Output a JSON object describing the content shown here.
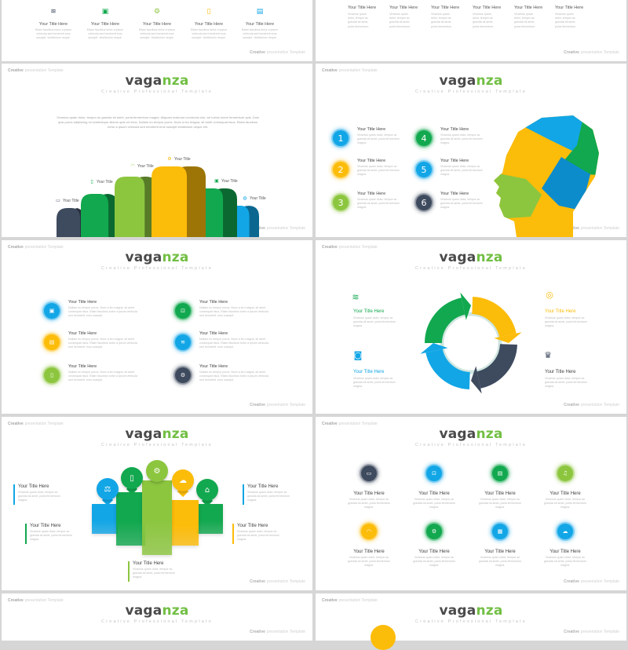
{
  "common": {
    "header_bold": "Creative",
    "header_light": "presentation Template",
    "brand_dark": "vaga",
    "brand_accent": "nza",
    "subtitle": "Creative Professional Template"
  },
  "colors": {
    "navy": "#3e4a5e",
    "green": "#12a84f",
    "light_green": "#8cc63f",
    "yellow": "#fcbc0a",
    "blue": "#12a6e6",
    "brand_accent": "#72bf44"
  },
  "slide_top_left": {
    "items": [
      {
        "icon": "rss-icon",
        "color": "#3e4a5e",
        "title": "Your Title Here",
        "body": "Etiam faucibus tortor a ipsum vehicula sed hendrerit eros suscipit. Vestibulum neque."
      },
      {
        "icon": "desktop-icon",
        "color": "#12a84f",
        "title": "Your Title Here",
        "body": "Etiam faucibus tortor a ipsum vehicula sed hendrerit eros suscipit. Vestibulum neque."
      },
      {
        "icon": "gear-icon",
        "color": "#8cc63f",
        "title": "Your Title Here",
        "body": "Etiam faucibus tortor a ipsum vehicula sed hendrerit eros suscipit. Vestibulum neque."
      },
      {
        "icon": "phone-icon",
        "color": "#fcbc0a",
        "title": "Your Title Here",
        "body": "Etiam faucibus tortor a ipsum vehicula sed hendrerit eros suscipit. Vestibulum neque."
      },
      {
        "icon": "clipboard-icon",
        "color": "#12a6e6",
        "title": "Your Title Here",
        "body": "Etiam faucibus tortor a ipsum vehicula sed hendrerit eros suscipit. Vestibulum neque."
      }
    ]
  },
  "slide_top_right": {
    "items": [
      {
        "title": "Your Title Here",
        "body": "Vivamus quam dolor, tempor ac gravida sit amet, porta fermentum"
      },
      {
        "title": "Your Title Here",
        "body": "Vivamus quam dolor, tempor ac gravida sit amet, porta fermentum"
      },
      {
        "title": "Your Title Here",
        "body": "Vivamus quam dolor, tempor ac gravida sit amet, porta fermentum"
      },
      {
        "title": "Your Title Here",
        "body": "Vivamus quam dolor, tempor ac gravida sit amet, porta fermentum"
      },
      {
        "title": "Your Title Here",
        "body": "Vivamus quam dolor, tempor ac gravida sit amet, porta fermentum"
      },
      {
        "title": "Your Title Here",
        "body": "Vivamus quam dolor, tempor ac gravida sit amet, porta fermentum"
      }
    ]
  },
  "slide_arches": {
    "paragraph": "Vivamus quam dolor, tempor ac gravida sit amet, porta fermentum magna. Aliquam euismod commodo nisi, vel luctus lorem fermentum quis. Duis quis purus adipiscing mi scelerisque dictum quis vel eros. Nullam eu tempor purus. Nunc a leo magna, sit amet consequat risus. Etiam faucibus tortor a ipsum vehicula sed hendrerit eros suscipit vestibulum neque elit.",
    "bars": [
      {
        "label": "Your Title",
        "icon": "monitor-icon",
        "color": "#3e4a5e"
      },
      {
        "label": "Your Title",
        "icon": "phone-icon",
        "color": "#12a84f"
      },
      {
        "label": "Your Title",
        "icon": "wifi-icon",
        "color": "#8cc63f"
      },
      {
        "label": "Your Title",
        "icon": "gear-icon",
        "color": "#fcbc0a"
      },
      {
        "label": "Your Title",
        "icon": "desktop-icon",
        "color": "#12a84f"
      },
      {
        "label": "Your Title",
        "icon": "globe-icon",
        "color": "#12a6e6"
      }
    ]
  },
  "slide_puzzle": {
    "items": [
      {
        "number": "1",
        "color": "#12a6e6",
        "title": "Your Title Here",
        "body": "Vivamus quam dolor, tempor ac gravida sit amet, porta fermentum magna."
      },
      {
        "number": "2",
        "color": "#fcbc0a",
        "title": "Your Title Here",
        "body": "Vivamus quam dolor, tempor ac gravida sit amet, porta fermentum magna."
      },
      {
        "number": "3",
        "color": "#8cc63f",
        "title": "Your Title Here",
        "body": "Vivamus quam dolor, tempor ac gravida sit amet, porta fermentum magna."
      },
      {
        "number": "4",
        "color": "#12a84f",
        "title": "Your Title Here",
        "body": "Vivamus quam dolor, tempor ac gravida sit amet, porta fermentum magna."
      },
      {
        "number": "5",
        "color": "#12a6e6",
        "title": "Your Title Here",
        "body": "Vivamus quam dolor, tempor ac gravida sit amet, porta fermentum magna."
      },
      {
        "number": "6",
        "color": "#3e4a5e",
        "title": "Your Title Here",
        "body": "Vivamus quam dolor, tempor ac gravida sit amet, porta fermentum magna."
      }
    ]
  },
  "slide_icon_list": {
    "items": [
      {
        "icon": "desktop-icon",
        "color": "#12a6e6",
        "title": "Your Title Here",
        "body": "Nullam eu tempor purus. Nunc a leo magna, sit amet consequat risus. Etiam faucibus tortor a ipsum vehicula sed hendrerit. eros suscipit."
      },
      {
        "icon": "clipboard-icon",
        "color": "#fcbc0a",
        "title": "Your Title Here",
        "body": "Nullam eu tempor purus. Nunc a leo magna, sit amet consequat risus. Etiam faucibus tortor a ipsum vehicula sed hendrerit. eros suscipit."
      },
      {
        "icon": "phone-icon",
        "color": "#8cc63f",
        "title": "Your Title Here",
        "body": "Nullam eu tempor purus. Nunc a leo magna, sit amet consequat risus. Etiam faucibus tortor a ipsum vehicula sed hendrerit. eros suscipit."
      },
      {
        "icon": "lock-icon",
        "color": "#12a84f",
        "title": "Your Title Here",
        "body": "Nullam eu tempor purus. Nunc a leo magna, sit amet consequat risus. Etiam faucibus tortor a ipsum vehicula sed hendrerit. eros suscipit."
      },
      {
        "icon": "rss-icon",
        "color": "#12a6e6",
        "title": "Your Title Here",
        "body": "Nullam eu tempor purus. Nunc a leo magna, sit amet consequat risus. Etiam faucibus tortor a ipsum vehicula sed hendrerit. eros suscipit."
      },
      {
        "icon": "gear-icon",
        "color": "#3e4a5e",
        "title": "Your Title Here",
        "body": "Nullam eu tempor purus. Nunc a leo magna, sit amet consequat risus. Etiam faucibus tortor a ipsum vehicula sed hendrerit. eros suscipit."
      }
    ]
  },
  "slide_cycle": {
    "items": [
      {
        "icon": "rss-icon",
        "color": "#12a84f",
        "title": "Your Title Here",
        "body": "Vivamus quam dolor, tempor ac gravida sit amet, porta fermentum magna."
      },
      {
        "icon": "camera-icon",
        "color": "#12a6e6",
        "title": "Your Title Here",
        "body": "Vivamus quam dolor, tempor ac gravida sit amet, porta fermentum magna."
      },
      {
        "icon": "target-icon",
        "color": "#fcbc0a",
        "title": "Your Title Here",
        "body": "Vivamus quam dolor, tempor ac gravida sit amet, porta fermentum magna."
      },
      {
        "icon": "trophy-icon",
        "color": "#3e4a5e",
        "title": "Your Title Here",
        "body": "Vivamus quam dolor, tempor ac gravida sit amet, porta fermentum magna."
      }
    ],
    "segments": [
      "#12a84f",
      "#fcbc0a",
      "#3e4a5e",
      "#12a6e6"
    ]
  },
  "slide_pins": {
    "pins": [
      {
        "icon": "scale-icon",
        "color": "#12a6e6"
      },
      {
        "icon": "phone-icon",
        "color": "#12a84f"
      },
      {
        "icon": "gear-icon",
        "color": "#8cc63f"
      },
      {
        "icon": "cloud-download-icon",
        "color": "#fcbc0a"
      },
      {
        "icon": "home-icon",
        "color": "#12a84f"
      }
    ],
    "texts": [
      {
        "color": "#12a6e6",
        "title": "Your Title Here",
        "body": "Vivamus quam dolor, tempor ac gravida sit amet, porta fermentum magna."
      },
      {
        "color": "#12a84f",
        "title": "Your Title Here",
        "body": "Vivamus quam dolor, tempor ac gravida sit amet, porta fermentum magna."
      },
      {
        "color": "#8cc63f",
        "title": "Your Title Here",
        "body": "Vivamus quam dolor, tempor ac gravida sit amet, porta fermentum magna."
      },
      {
        "color": "#12a6e6",
        "title": "Your Title Here",
        "body": "Vivamus quam dolor, tempor ac gravida sit amet, porta fermentum magna."
      },
      {
        "color": "#fcbc0a",
        "title": "Your Title Here",
        "body": "Vivamus quam dolor, tempor ac gravida sit amet, porta fermentum magna."
      }
    ]
  },
  "slide_grid": {
    "items": [
      {
        "icon": "monitor-icon",
        "color": "#3e4a5e",
        "title": "Your Title Here",
        "body": "Vivamus quam dolor, tempor ac gravida sit amet, porta fermentum magna."
      },
      {
        "icon": "lock-icon",
        "color": "#12a6e6",
        "title": "Your Title Here",
        "body": "Vivamus quam dolor, tempor ac gravida sit amet, porta fermentum magna."
      },
      {
        "icon": "clipboard-icon",
        "color": "#12a84f",
        "title": "Your Title Here",
        "body": "Vivamus quam dolor, tempor ac gravida sit amet, porta fermentum magna."
      },
      {
        "icon": "music-icon",
        "color": "#8cc63f",
        "title": "Your Title Here",
        "body": "Vivamus quam dolor, tempor ac gravida sit amet, porta fermentum magna."
      },
      {
        "icon": "wifi-icon",
        "color": "#fcbc0a",
        "title": "Your Title Here",
        "body": "Vivamus quam dolor, tempor ac gravida sit amet, porta fermentum magna."
      },
      {
        "icon": "gear-icon",
        "color": "#12a84f",
        "title": "Your Title Here",
        "body": "Vivamus quam dolor, tempor ac gravida sit amet, porta fermentum magna."
      },
      {
        "icon": "calendar-icon",
        "color": "#12a6e6",
        "title": "Your Title Here",
        "body": "Vivamus quam dolor, tempor ac gravida sit amet, porta fermentum magna."
      },
      {
        "icon": "cloud-download-icon",
        "color": "#12a6e6",
        "title": "Your Title Here",
        "body": "Vivamus quam dolor, tempor ac gravida sit amet, porta fermentum magna."
      }
    ]
  }
}
